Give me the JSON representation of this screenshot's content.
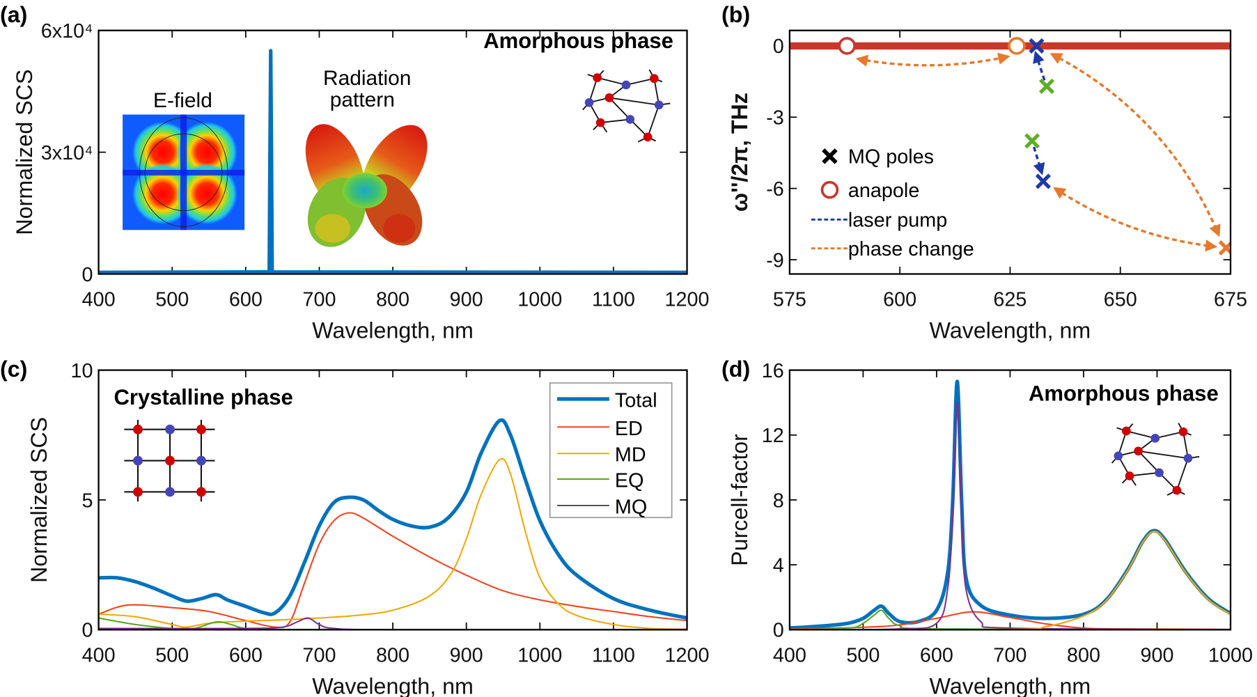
{
  "figure": {
    "panel_letters": [
      "(a)",
      "(b)",
      "(c)",
      "(d)"
    ],
    "colors": {
      "total": "#0072BD",
      "ED": "#F5421C",
      "MD": "#F5A800",
      "EQ": "#58A81E",
      "MQ": "#7E2F8E",
      "b_line": "#C8372B",
      "b_orange": "#E8782A",
      "b_blue": "#1C3AA8",
      "b_green": "#5DAE27",
      "atom_red": "#D10000",
      "atom_blue": "#4545B8"
    }
  },
  "chart_data": [
    {
      "panel": "(a)",
      "type": "line",
      "xlabel": "Wavelength, nm",
      "ylabel": "Normalized SCS",
      "xlim": [
        400,
        1200
      ],
      "ylim": [
        0,
        60000
      ],
      "xticks": [
        400,
        500,
        600,
        700,
        800,
        900,
        1000,
        1100,
        1200
      ],
      "xtick_labels": [
        "400",
        "500",
        "600",
        "700",
        "800",
        "900",
        "1000",
        "1100",
        "1200"
      ],
      "yticks": [
        0,
        30000,
        60000
      ],
      "ytick_labels": [
        "0",
        "3x10⁴",
        "6x10⁴"
      ],
      "annotations": {
        "phase": "Amorphous phase",
        "efield": "E-field",
        "radiation_1": "Radiation",
        "radiation_2": "pattern"
      },
      "insets": [
        "e-field-map",
        "radiation-pattern",
        "amorphous-lattice"
      ],
      "series": [
        {
          "key": "MQ",
          "x": [
            400,
            630,
            634,
            638,
            1200
          ],
          "y": [
            200,
            200,
            300,
            200,
            200
          ]
        },
        {
          "key": "total",
          "x": [
            400,
            632,
            633,
            634,
            635,
            636,
            1200
          ],
          "y": [
            400,
            500,
            30000,
            55000,
            30000,
            500,
            400
          ]
        }
      ]
    },
    {
      "panel": "(b)",
      "type": "scatter",
      "xlabel": "Wavelength, nm",
      "ylabel": "ω''/2π, THz",
      "xlim": [
        575,
        675
      ],
      "ylim": [
        -9.6,
        0.65
      ],
      "xticks": [
        575,
        600,
        625,
        650,
        675
      ],
      "xtick_labels": [
        "575",
        "600",
        "625",
        "650",
        "675"
      ],
      "yticks": [
        0,
        -3,
        -6,
        -9
      ],
      "ytick_labels": [
        "0",
        "-3",
        "-6",
        "-9"
      ],
      "zero_line": 0,
      "anapoles": [
        {
          "x": 588,
          "y": 0,
          "color": "b_line"
        },
        {
          "x": 626.5,
          "y": 0,
          "color": "b_orange"
        }
      ],
      "mq_poles": [
        {
          "x": 631,
          "y": 0,
          "color": "b_blue"
        },
        {
          "x": 633.3,
          "y": -1.7,
          "color": "b_green"
        },
        {
          "x": 630,
          "y": -4.0,
          "color": "b_green"
        },
        {
          "x": 632.5,
          "y": -5.7,
          "color": "b_blue"
        },
        {
          "x": 674,
          "y": -8.5,
          "color": "b_orange"
        }
      ],
      "arrows": [
        {
          "from": [
            590.5,
            -0.55
          ],
          "to": [
            624.5,
            -0.45
          ],
          "kind": "phase change",
          "heads": "both"
        },
        {
          "from": [
            634.5,
            -0.35
          ],
          "to": [
            672.3,
            -7.95
          ],
          "kind": "phase change",
          "heads": "both"
        },
        {
          "from": [
            635.2,
            -6.0
          ],
          "to": [
            671.5,
            -8.45
          ],
          "kind": "phase change",
          "heads": "both"
        },
        {
          "from": [
            632.8,
            -1.45
          ],
          "to": [
            630.8,
            -0.3
          ],
          "kind": "laser pump",
          "heads": "end"
        },
        {
          "from": [
            630.4,
            -4.25
          ],
          "to": [
            632.2,
            -5.35
          ],
          "kind": "laser pump",
          "heads": "end"
        }
      ],
      "legend": {
        "placement": "left",
        "entries": [
          "MQ poles",
          "anapole",
          "laser pump",
          "phase change"
        ]
      }
    },
    {
      "panel": "(c)",
      "type": "line",
      "xlabel": "Wavelength, nm",
      "ylabel": "Normalized SCS",
      "xlim": [
        400,
        1200
      ],
      "ylim": [
        0,
        10
      ],
      "xticks": [
        400,
        500,
        600,
        700,
        800,
        900,
        1000,
        1100,
        1200
      ],
      "xtick_labels": [
        "400",
        "500",
        "600",
        "700",
        "800",
        "900",
        "1000",
        "1100",
        "1200"
      ],
      "yticks": [
        0,
        5,
        10
      ],
      "ytick_labels": [
        "0",
        "5",
        "10"
      ],
      "annotations": {
        "phase": "Crystalline phase"
      },
      "insets": [
        "crystalline-lattice"
      ],
      "legend": {
        "placement": "top-right",
        "entries": [
          "Total",
          "ED",
          "MD",
          "EQ",
          "MQ"
        ]
      },
      "series": [
        {
          "name": "ED",
          "key": "ED",
          "x": [
            400,
            440,
            500,
            550,
            600,
            640,
            660,
            680,
            700,
            720,
            740,
            760,
            800,
            850,
            900,
            950,
            1000,
            1050,
            1100,
            1150,
            1200
          ],
          "y": [
            0.6,
            0.95,
            0.85,
            0.7,
            0.35,
            0.1,
            0.3,
            1.8,
            3.3,
            4.2,
            4.5,
            4.3,
            3.6,
            2.8,
            2.1,
            1.5,
            1.15,
            0.9,
            0.7,
            0.5,
            0.35
          ]
        },
        {
          "name": "MD",
          "key": "MD",
          "x": [
            400,
            450,
            500,
            520,
            550,
            600,
            650,
            700,
            750,
            800,
            850,
            880,
            900,
            920,
            945,
            960,
            980,
            1000,
            1025,
            1050,
            1100,
            1150,
            1200
          ],
          "y": [
            0.6,
            0.5,
            0.2,
            0.1,
            0.25,
            0.33,
            0.38,
            0.45,
            0.55,
            0.75,
            1.3,
            2.2,
            3.5,
            5.2,
            6.55,
            6.0,
            3.8,
            2.0,
            1.0,
            0.55,
            0.2,
            0.05,
            0.02
          ]
        },
        {
          "name": "EQ",
          "key": "EQ",
          "x": [
            400,
            450,
            500,
            530,
            560,
            580,
            600,
            650,
            800,
            1200
          ],
          "y": [
            0.45,
            0.2,
            0.05,
            0.05,
            0.3,
            0.2,
            0.05,
            0.01,
            0,
            0
          ]
        },
        {
          "name": "MQ",
          "key": "MQ",
          "x": [
            400,
            600,
            650,
            670,
            685,
            700,
            720,
            800,
            1200
          ],
          "y": [
            0.05,
            0.05,
            0.1,
            0.3,
            0.45,
            0.2,
            0.05,
            0,
            0
          ]
        },
        {
          "name": "Total",
          "key": "total",
          "x": [
            400,
            425,
            450,
            475,
            500,
            520,
            540,
            560,
            575,
            600,
            625,
            640,
            660,
            680,
            700,
            720,
            740,
            760,
            780,
            800,
            825,
            850,
            875,
            900,
            920,
            945,
            960,
            980,
            1000,
            1025,
            1050,
            1100,
            1150,
            1200
          ],
          "y": [
            2.0,
            2.0,
            1.85,
            1.6,
            1.3,
            1.1,
            1.2,
            1.35,
            1.15,
            0.9,
            0.65,
            0.65,
            1.3,
            2.6,
            4.0,
            4.9,
            5.1,
            5.0,
            4.6,
            4.25,
            4.0,
            3.95,
            4.3,
            5.3,
            6.8,
            8.05,
            7.5,
            5.8,
            4.2,
            2.9,
            2.1,
            1.2,
            0.75,
            0.45
          ]
        }
      ]
    },
    {
      "panel": "(d)",
      "type": "line",
      "xlabel": "Wavelength, nm",
      "ylabel": "Purcell-factor",
      "xlim": [
        400,
        1000
      ],
      "ylim": [
        0,
        16
      ],
      "xticks": [
        400,
        500,
        600,
        700,
        800,
        900,
        1000
      ],
      "xtick_labels": [
        "400",
        "500",
        "600",
        "700",
        "800",
        "900",
        "1000"
      ],
      "yticks": [
        0,
        4,
        8,
        12,
        16
      ],
      "ytick_labels": [
        "0",
        "4",
        "8",
        "12",
        "16"
      ],
      "annotations": {
        "phase": "Amorphous phase"
      },
      "insets": [
        "amorphous-lattice"
      ],
      "series": [
        {
          "key": "total",
          "x": [
            400,
            450,
            480,
            500,
            515,
            525,
            535,
            550,
            575,
            600,
            615,
            622,
            628,
            634,
            640,
            660,
            700,
            750,
            800,
            830,
            860,
            880,
            895,
            910,
            940,
            970,
            1000
          ],
          "y": [
            0.1,
            0.25,
            0.4,
            0.7,
            1.2,
            1.45,
            1.0,
            0.5,
            0.5,
            1.2,
            3.5,
            8,
            15.3,
            8,
            3.2,
            1.5,
            0.9,
            0.7,
            0.95,
            1.8,
            3.7,
            5.4,
            6.1,
            5.6,
            3.5,
            1.9,
            1.0
          ]
        },
        {
          "key": "MD",
          "x": [
            400,
            700,
            750,
            800,
            830,
            860,
            880,
            895,
            910,
            940,
            970,
            1000
          ],
          "y": [
            0,
            0.02,
            0.2,
            0.85,
            1.75,
            3.65,
            5.35,
            6.05,
            5.55,
            3.45,
            1.85,
            0.95
          ]
        },
        {
          "key": "ED",
          "x": [
            400,
            500,
            550,
            600,
            650,
            700,
            750,
            800,
            850,
            1000
          ],
          "y": [
            0.05,
            0.15,
            0.3,
            0.7,
            1.1,
            0.75,
            0.35,
            0.1,
            0.05,
            0.02
          ]
        },
        {
          "key": "EQ",
          "x": [
            400,
            480,
            500,
            515,
            525,
            535,
            550,
            600,
            1000
          ],
          "y": [
            0.02,
            0.1,
            0.4,
            0.9,
            1.2,
            0.7,
            0.25,
            0.05,
            0
          ]
        },
        {
          "key": "MQ",
          "x": [
            400,
            550,
            600,
            615,
            622,
            628,
            634,
            640,
            660,
            700,
            1000
          ],
          "y": [
            0,
            0.05,
            0.4,
            2.5,
            7,
            14,
            7,
            2.5,
            0.5,
            0.1,
            0
          ]
        }
      ]
    }
  ]
}
